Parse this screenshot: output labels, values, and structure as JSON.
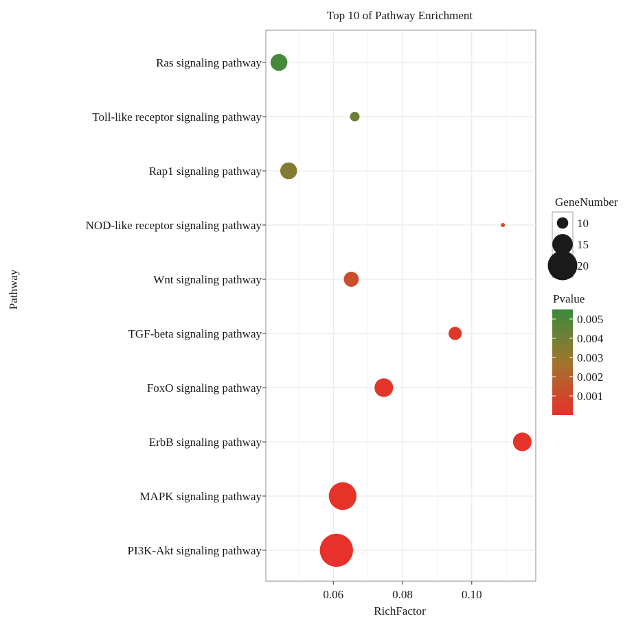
{
  "chart_data": {
    "type": "scatter",
    "title": "Top 10 of Pathway Enrichment",
    "xlabel": "RichFactor",
    "ylabel": "Pathway",
    "xlim": [
      0.0405,
      0.1185
    ],
    "xticks": [
      0.06,
      0.08,
      0.1
    ],
    "xtick_labels": [
      "0.06",
      "0.08",
      "0.10"
    ],
    "grid": true,
    "legend_position": "right",
    "categories": [
      "Ras signaling pathway",
      "Toll-like receptor signaling pathway",
      "Rap1 signaling pathway",
      "NOD-like receptor signaling pathway",
      "Wnt signaling pathway",
      "TGF-beta signaling pathway",
      "FoxO signaling pathway",
      "ErbB signaling pathway",
      "MAPK signaling pathway",
      "PI3K-Akt signaling pathway"
    ],
    "points": [
      {
        "pathway": "Ras signaling pathway",
        "rich_factor": 0.0443,
        "gene_number": 13,
        "pvalue": 0.0052
      },
      {
        "pathway": "Toll-like receptor signaling pathway",
        "rich_factor": 0.0662,
        "gene_number": 9,
        "pvalue": 0.0042
      },
      {
        "pathway": "Rap1 signaling pathway",
        "rich_factor": 0.0471,
        "gene_number": 13,
        "pvalue": 0.0035
      },
      {
        "pathway": "NOD-like receptor signaling pathway",
        "rich_factor": 0.109,
        "gene_number": 6,
        "pvalue": 0.0013
      },
      {
        "pathway": "Wnt signaling pathway",
        "rich_factor": 0.0652,
        "gene_number": 12,
        "pvalue": 0.0012
      },
      {
        "pathway": "TGF-beta signaling pathway",
        "rich_factor": 0.0952,
        "gene_number": 11,
        "pvalue": 0.0004
      },
      {
        "pathway": "FoxO signaling pathway",
        "rich_factor": 0.0746,
        "gene_number": 14,
        "pvalue": 0.0002
      },
      {
        "pathway": "ErbB signaling pathway",
        "rich_factor": 0.1146,
        "gene_number": 14,
        "pvalue": 0.0001
      },
      {
        "pathway": "MAPK signaling pathway",
        "rich_factor": 0.0627,
        "gene_number": 19,
        "pvalue": 0.0001
      },
      {
        "pathway": "PI3K-Akt signaling pathway",
        "rich_factor": 0.0609,
        "gene_number": 22,
        "pvalue": 5e-05
      }
    ],
    "size_legend": {
      "title": "GeneNumber",
      "entries": [
        {
          "label": "10",
          "value": 10
        },
        {
          "label": "15",
          "value": 15
        },
        {
          "label": "20",
          "value": 20
        }
      ]
    },
    "color_legend": {
      "title": "Pvalue",
      "range": [
        0,
        0.0055
      ],
      "ticks": [
        0.005,
        0.004,
        0.003,
        0.002,
        0.001
      ],
      "tick_labels": [
        "0.005",
        "0.004",
        "0.003",
        "0.002",
        "0.001"
      ],
      "low_color": "#e8302a",
      "mid_color": "#a0752e",
      "high_color": "#3b8a3e"
    }
  }
}
